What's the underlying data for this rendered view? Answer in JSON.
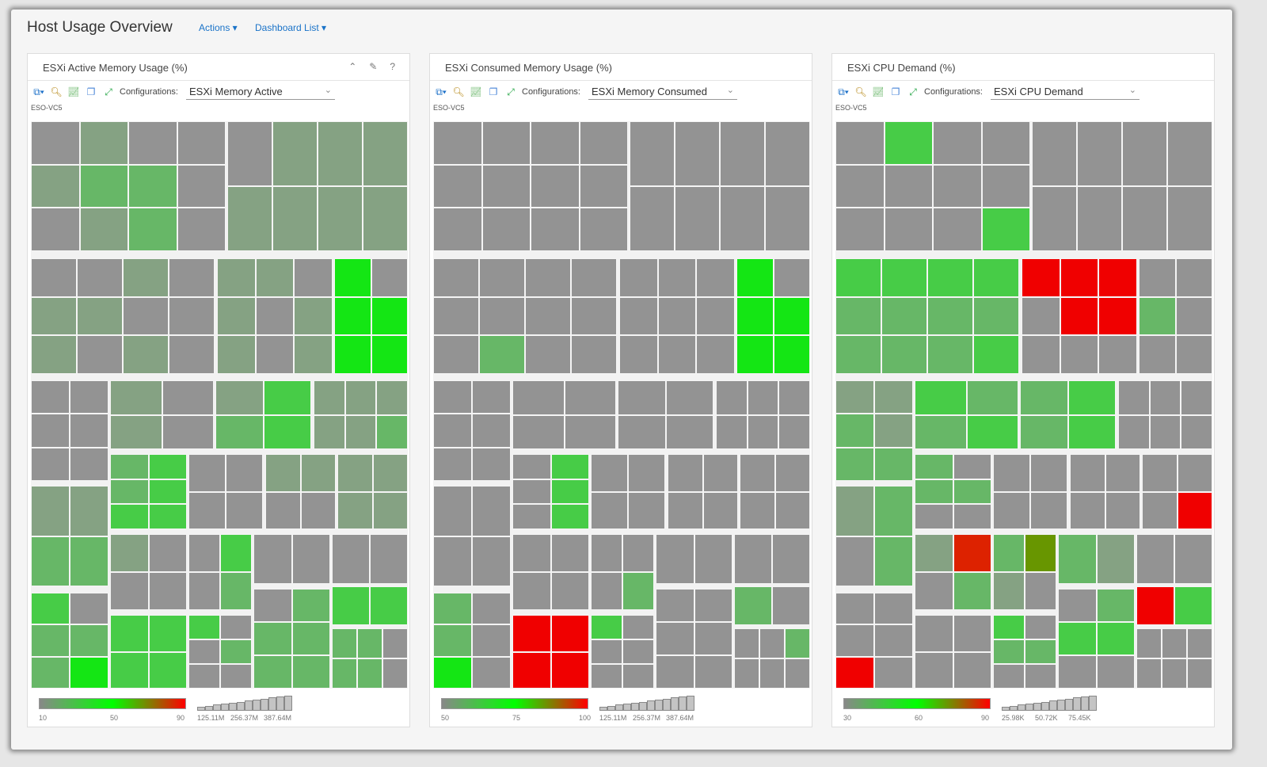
{
  "header": {
    "title": "Host Usage Overview",
    "actions": "Actions ▾",
    "dashboard_list": "Dashboard List ▾"
  },
  "colors": {
    "g": "#939393",
    "a": "#85a283",
    "m": "#67b767",
    "l": "#47cc47",
    "b": "#14e614",
    "r": "#f00000",
    "o": "#689600",
    "d": "#dd2200"
  },
  "panels": [
    {
      "title": "ESXi Active Memory Usage (%)",
      "config_label": "Configurations:",
      "config_value": "ESXi Memory Active",
      "host": "ESO-VC5",
      "legend": {
        "min": "10",
        "mid": "50",
        "max": "90",
        "gradient": [
          "#888888",
          "#00ff00",
          "#ff0000"
        ]
      },
      "size_legend": [
        "125.11M",
        "256.37M",
        "387.64M"
      ]
    },
    {
      "title": "ESXi Consumed Memory Usage (%)",
      "config_label": "Configurations:",
      "config_value": "ESXi Memory Consumed",
      "host": "ESO-VC5",
      "legend": {
        "min": "50",
        "mid": "75",
        "max": "100",
        "gradient": [
          "#888888",
          "#00ff00",
          "#ff0000"
        ]
      },
      "size_legend": [
        "125.11M",
        "256.37M",
        "387.64M"
      ]
    },
    {
      "title": "ESXi CPU Demand (%)",
      "config_label": "Configurations:",
      "config_value": "ESXi CPU Demand",
      "host": "ESO-VC5",
      "legend": {
        "min": "30",
        "mid": "60",
        "max": "90",
        "gradient": [
          "#888888",
          "#00ff00",
          "#ff0000"
        ]
      },
      "size_legend": [
        "25.98K",
        "50.72K",
        "75.45K"
      ]
    }
  ]
}
